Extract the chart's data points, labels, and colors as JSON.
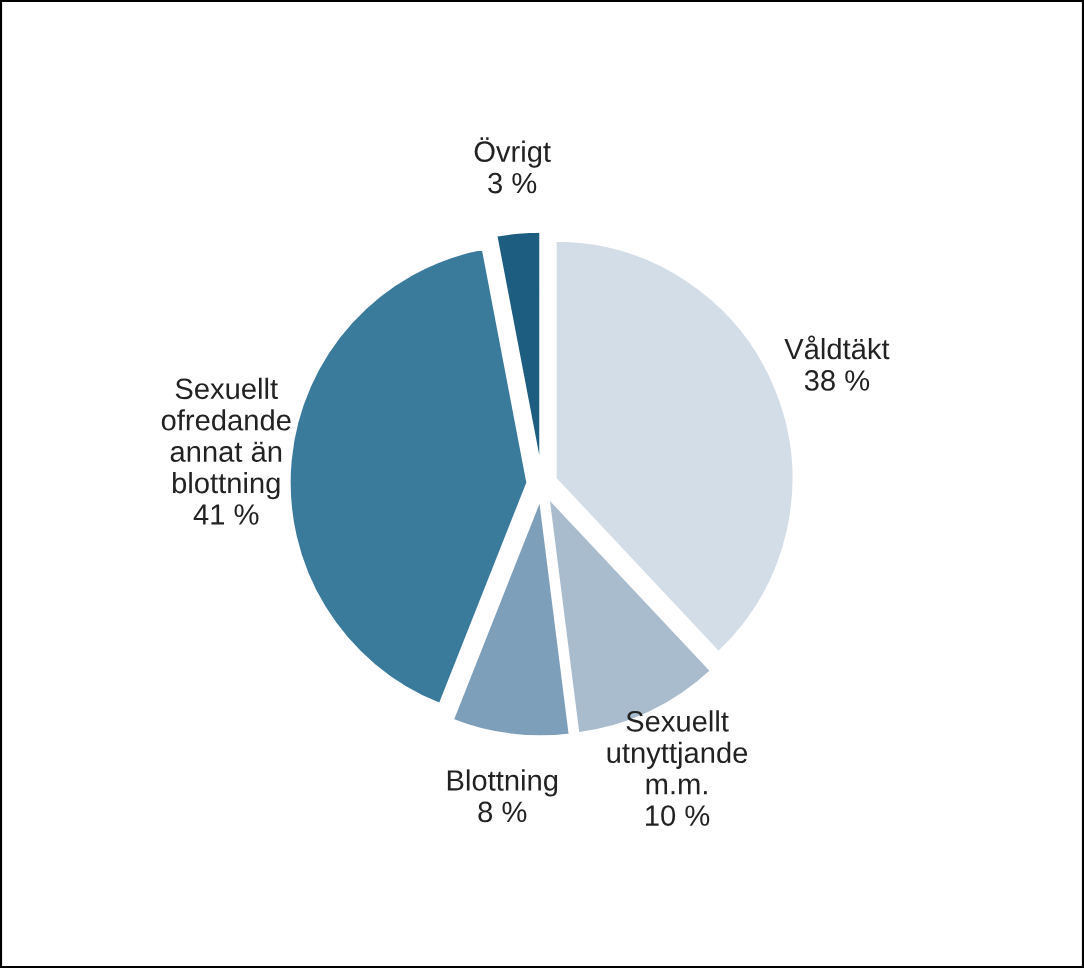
{
  "chart_data": {
    "type": "pie",
    "categories": [
      "Våldtäkt",
      "Sexuellt\nutnyttjande\nm.m.",
      "Blottning",
      "Sexuellt\nofredande\nannat än\nblottning",
      "Övrigt"
    ],
    "values": [
      38,
      10,
      8,
      41,
      3
    ],
    "value_labels": [
      "38 %",
      "10 %",
      "8 %",
      "41 %",
      "3 %"
    ],
    "colors": [
      "#d3dde7",
      "#a8bccd",
      "#7e9fb9",
      "#3a7b9c",
      "#1d5d80"
    ],
    "legend": false
  }
}
